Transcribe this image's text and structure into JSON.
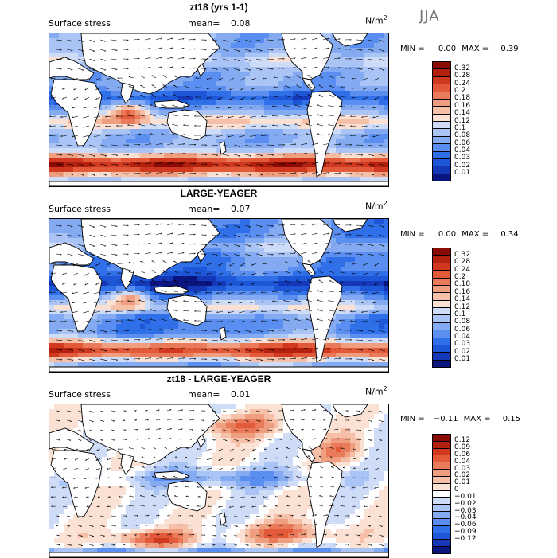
{
  "season": "JJA",
  "colorscales": {
    "abs": [
      "#0a1580",
      "#1538b8",
      "#1e56d8",
      "#2f6fe8",
      "#5a8ef0",
      "#84aaf2",
      "#a9c4f5",
      "#cfdcf8",
      "#fbe1d3",
      "#f6c0a8",
      "#f09e80",
      "#e97b5a",
      "#e25a3a",
      "#d0391f",
      "#b3210e",
      "#8a0b04"
    ],
    "diff": [
      "#0a1580",
      "#1538b8",
      "#1e56d8",
      "#2f6fe8",
      "#5a8ef0",
      "#84aaf2",
      "#a9c4f5",
      "#cfdcf8",
      "#ffffff",
      "#fbe1d3",
      "#f6c0a8",
      "#f09e80",
      "#e97b5a",
      "#e25a3a",
      "#d0391f",
      "#b3210e",
      "#8a0b04"
    ]
  },
  "panels": [
    {
      "title": "zt18 (yrs 1-1)",
      "label": "Surface stress",
      "mean_label": "mean=",
      "mean_value": "0.08",
      "units": "N/m",
      "units_exp": "2",
      "min_label": "MIN =",
      "min_value": "0.00",
      "max_label": "MAX =",
      "max_value": "0.39",
      "scale": "abs",
      "colorbar_ticks": [
        "0.32",
        "0.28",
        "0.24",
        "0.2",
        "0.18",
        "0.16",
        "0.14",
        "0.12",
        "0.1",
        "0.08",
        "0.06",
        "0.04",
        "0.03",
        "0.02",
        "0.01"
      ]
    },
    {
      "title": "LARGE-YEAGER",
      "label": "Surface stress",
      "mean_label": "mean=",
      "mean_value": "0.07",
      "units": "N/m",
      "units_exp": "2",
      "min_label": "MIN =",
      "min_value": "0.00",
      "max_label": "MAX =",
      "max_value": "0.34",
      "scale": "abs",
      "colorbar_ticks": [
        "0.32",
        "0.28",
        "0.24",
        "0.2",
        "0.18",
        "0.16",
        "0.14",
        "0.12",
        "0.1",
        "0.08",
        "0.06",
        "0.04",
        "0.03",
        "0.02",
        "0.01"
      ]
    },
    {
      "title": "zt18 - LARGE-YEAGER",
      "label": "Surface stress",
      "mean_label": "mean=",
      "mean_value": "0.01",
      "units": "N/m",
      "units_exp": "2",
      "min_label": "MIN =",
      "min_value": "−0.11",
      "max_label": "MAX =",
      "max_value": "0.15",
      "scale": "diff",
      "colorbar_ticks": [
        "0.12",
        "0.09",
        "0.06",
        "0.04",
        "0.03",
        "0.02",
        "0.01",
        "0",
        "−0.01",
        "−0.02",
        "−0.03",
        "−0.04",
        "−0.06",
        "−0.09",
        "−0.12"
      ]
    }
  ]
}
